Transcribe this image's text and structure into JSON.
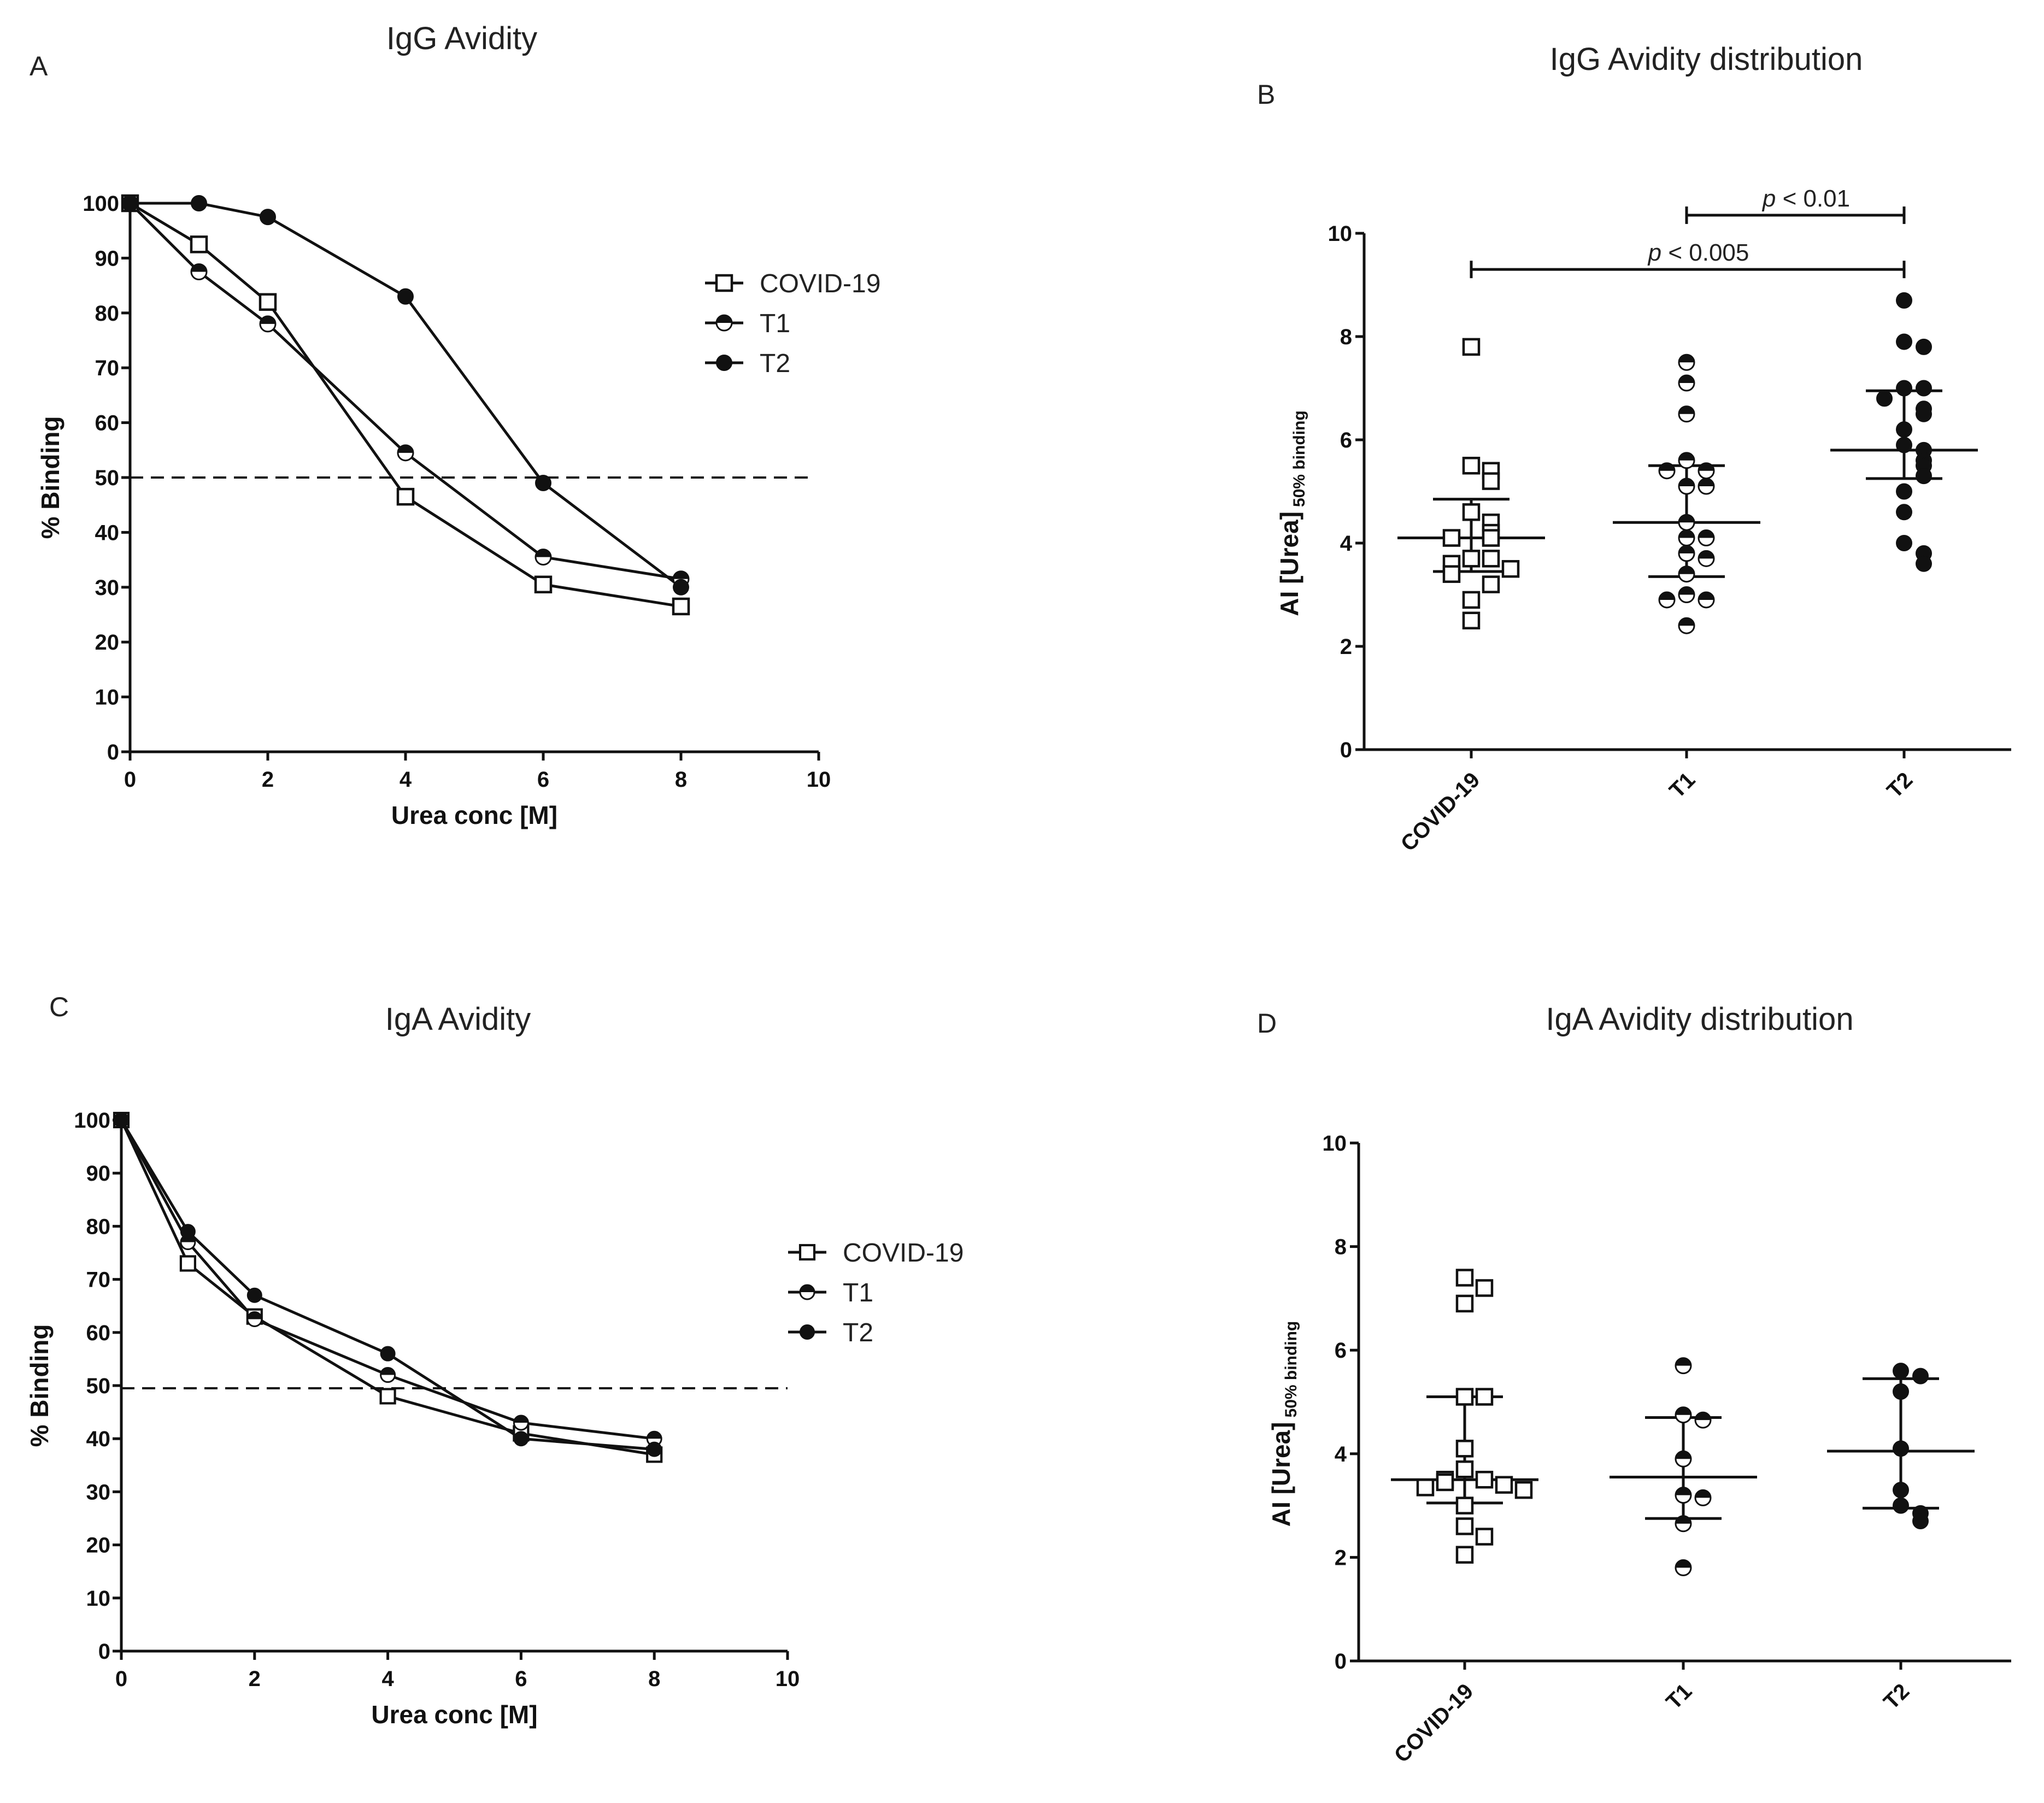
{
  "chart_data": [
    {
      "panel": "A",
      "type": "line",
      "title": "IgG Avidity",
      "xlabel": "Urea conc [M]",
      "ylabel": "% Binding",
      "xlim": [
        0,
        10
      ],
      "ylim": [
        0,
        100
      ],
      "xticks": [
        0,
        2,
        4,
        6,
        8,
        10
      ],
      "yticks": [
        0,
        10,
        20,
        30,
        40,
        50,
        60,
        70,
        80,
        90,
        100
      ],
      "reference_line": 50,
      "legend_position": "right",
      "series": [
        {
          "name": "COVID-19",
          "marker": "open-square",
          "x": [
            0,
            1,
            2,
            4,
            6,
            8
          ],
          "y": [
            100,
            92.5,
            82,
            46.5,
            30.5,
            26.5
          ]
        },
        {
          "name": "T1",
          "marker": "half-circle",
          "x": [
            0,
            1,
            2,
            4,
            6,
            8
          ],
          "y": [
            100,
            87.5,
            78,
            54.5,
            35.5,
            31.5
          ]
        },
        {
          "name": "T2",
          "marker": "filled-circle",
          "x": [
            0,
            1,
            2,
            4,
            6,
            8
          ],
          "y": [
            100,
            100,
            97.5,
            83,
            49,
            30
          ]
        }
      ]
    },
    {
      "panel": "B",
      "type": "scatter",
      "title": "IgG Avidity distribution",
      "xlabel": "",
      "ylabel": "AI [Urea]",
      "ylabel_sub": "50% binding",
      "ylim": [
        0,
        10
      ],
      "yticks": [
        0,
        2,
        4,
        6,
        8,
        10
      ],
      "categories": [
        "COVID-19",
        "T1",
        "T2"
      ],
      "series": [
        {
          "name": "COVID-19",
          "marker": "open-square",
          "values": [
            7.8,
            5.5,
            5.4,
            5.2,
            4.6,
            4.4,
            4.2,
            4.1,
            4.1,
            3.7,
            3.7,
            3.6,
            3.5,
            3.4,
            3.2,
            2.9,
            2.5
          ],
          "median": 4.1,
          "q1": 3.45,
          "q3": 4.85
        },
        {
          "name": "T1",
          "marker": "half-circle",
          "values": [
            7.5,
            7.1,
            6.5,
            5.6,
            5.4,
            5.4,
            5.1,
            5.1,
            4.4,
            4.1,
            4.1,
            3.8,
            3.7,
            3.4,
            3.0,
            2.9,
            2.9,
            2.4
          ],
          "median": 4.4,
          "q1": 3.35,
          "q3": 5.5
        },
        {
          "name": "T2",
          "marker": "filled-circle",
          "values": [
            8.7,
            7.9,
            7.8,
            7.0,
            7.0,
            6.8,
            6.6,
            6.5,
            6.2,
            5.9,
            5.8,
            5.6,
            5.5,
            5.3,
            5.0,
            4.6,
            4.0,
            3.8,
            3.6
          ],
          "median": 5.8,
          "q1": 5.25,
          "q3": 6.95
        }
      ],
      "annotations": [
        {
          "from": "T1",
          "to": "T2",
          "label": "p < 0.01",
          "label_p": "p",
          "label_rest": " < 0.01",
          "y": 10.35
        },
        {
          "from": "COVID-19",
          "to": "T2",
          "label": "p < 0.005",
          "label_p": "p",
          "label_rest": " < 0.005",
          "y": 9.3
        }
      ]
    },
    {
      "panel": "C",
      "type": "line",
      "title": "IgA Avidity",
      "xlabel": "Urea conc [M]",
      "ylabel": "% Binding",
      "xlim": [
        0,
        10
      ],
      "ylim": [
        0,
        100
      ],
      "xticks": [
        0,
        2,
        4,
        6,
        8,
        10
      ],
      "yticks": [
        0,
        10,
        20,
        30,
        40,
        50,
        60,
        70,
        80,
        90,
        100
      ],
      "reference_line": 49.5,
      "legend_position": "right",
      "series": [
        {
          "name": "COVID-19",
          "marker": "open-square",
          "x": [
            0,
            1,
            2,
            4,
            6,
            8
          ],
          "y": [
            100,
            73,
            63,
            48,
            41,
            37
          ]
        },
        {
          "name": "T1",
          "marker": "half-circle",
          "x": [
            0,
            1,
            2,
            4,
            6,
            8
          ],
          "y": [
            100,
            77,
            62.5,
            52,
            43,
            40
          ]
        },
        {
          "name": "T2",
          "marker": "filled-circle",
          "x": [
            0,
            1,
            2,
            4,
            6,
            8
          ],
          "y": [
            100,
            79,
            67,
            56,
            40,
            38
          ]
        }
      ]
    },
    {
      "panel": "D",
      "type": "scatter",
      "title": "IgA Avidity distribution",
      "xlabel": "",
      "ylabel": "AI [Urea]",
      "ylabel_sub": "50% binding",
      "ylim": [
        0,
        10
      ],
      "yticks": [
        0,
        2,
        4,
        6,
        8,
        10
      ],
      "categories": [
        "COVID-19",
        "T1",
        "T2"
      ],
      "series": [
        {
          "name": "COVID-19",
          "marker": "open-square",
          "values": [
            7.4,
            7.2,
            6.9,
            5.1,
            5.1,
            4.1,
            3.7,
            3.5,
            3.5,
            3.45,
            3.4,
            3.35,
            3.3,
            3.0,
            2.6,
            2.4,
            2.05
          ],
          "median": 3.5,
          "q1": 3.05,
          "q3": 5.1
        },
        {
          "name": "T1",
          "marker": "half-circle",
          "values": [
            5.7,
            4.75,
            4.65,
            3.9,
            3.2,
            3.15,
            2.65,
            1.8
          ],
          "median": 3.55,
          "q1": 2.75,
          "q3": 4.7
        },
        {
          "name": "T2",
          "marker": "filled-circle",
          "values": [
            5.6,
            5.5,
            5.2,
            4.1,
            3.3,
            3.0,
            2.85,
            2.7
          ],
          "median": 4.05,
          "q1": 2.95,
          "q3": 5.45
        }
      ],
      "annotations": []
    }
  ]
}
